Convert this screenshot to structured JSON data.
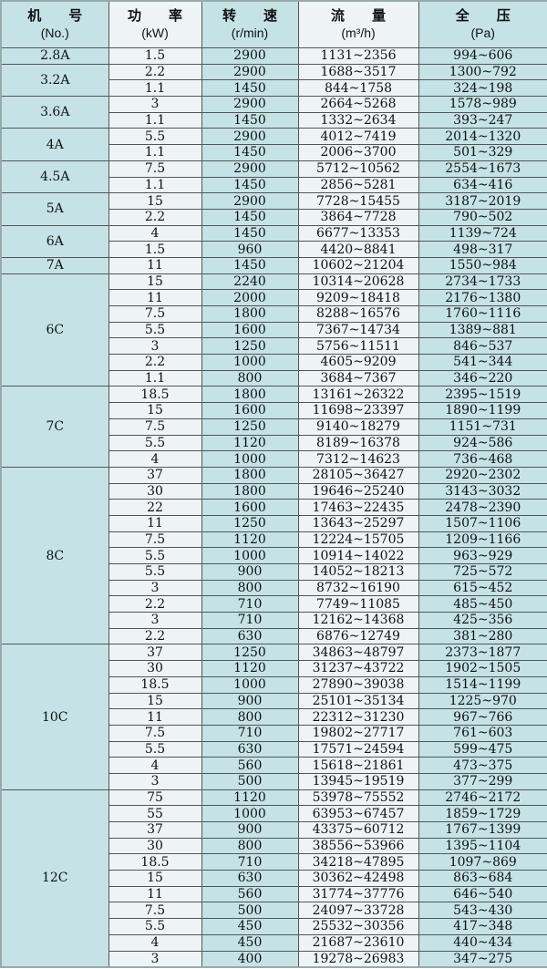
{
  "colors": {
    "teal": "#c5e3e6",
    "light": "#eef4f5",
    "border": "#555555"
  },
  "headers": [
    {
      "label": "机　　号",
      "unit": "(No.)"
    },
    {
      "label": "功　　率",
      "unit": "(kW)"
    },
    {
      "label": "转　　速",
      "unit": "(r/min)"
    },
    {
      "label": "流　　量",
      "unit": "(m³/h)"
    },
    {
      "label": "全　　压",
      "unit": "(Pa)"
    }
  ],
  "groups": [
    {
      "model": "2.8A",
      "rows": [
        [
          "1.5",
          "2900",
          "1131~2356",
          "994~606"
        ]
      ]
    },
    {
      "model": "3.2A",
      "rows": [
        [
          "2.2",
          "2900",
          "1688~3517",
          "1300~792"
        ],
        [
          "1.1",
          "1450",
          "844~1758",
          "324~198"
        ]
      ]
    },
    {
      "model": "3.6A",
      "rows": [
        [
          "3",
          "2900",
          "2664~5268",
          "1578~989"
        ],
        [
          "1.1",
          "1450",
          "1332~2634",
          "393~247"
        ]
      ]
    },
    {
      "model": "4A",
      "rows": [
        [
          "5.5",
          "2900",
          "4012~7419",
          "2014~1320"
        ],
        [
          "1.1",
          "1450",
          "2006~3700",
          "501~329"
        ]
      ]
    },
    {
      "model": "4.5A",
      "rows": [
        [
          "7.5",
          "2900",
          "5712~10562",
          "2554~1673"
        ],
        [
          "1.1",
          "1450",
          "2856~5281",
          "634~416"
        ]
      ]
    },
    {
      "model": "5A",
      "rows": [
        [
          "15",
          "2900",
          "7728~15455",
          "3187~2019"
        ],
        [
          "2.2",
          "1450",
          "3864~7728",
          "790~502"
        ]
      ]
    },
    {
      "model": "6A",
      "rows": [
        [
          "4",
          "1450",
          "6677~13353",
          "1139~724"
        ],
        [
          "1.5",
          "960",
          "4420~8841",
          "498~317"
        ]
      ]
    },
    {
      "model": "7A",
      "rows": [
        [
          "11",
          "1450",
          "10602~21204",
          "1550~984"
        ]
      ]
    },
    {
      "model": "6C",
      "rows": [
        [
          "15",
          "2240",
          "10314~20628",
          "2734~1733"
        ],
        [
          "11",
          "2000",
          "9209~18418",
          "2176~1380"
        ],
        [
          "7.5",
          "1800",
          "8288~16576",
          "1760~1116"
        ],
        [
          "5.5",
          "1600",
          "7367~14734",
          "1389~881"
        ],
        [
          "3",
          "1250",
          "5756~11511",
          "846~537"
        ],
        [
          "2.2",
          "1000",
          "4605~9209",
          "541~344"
        ],
        [
          "1.1",
          "800",
          "3684~7367",
          "346~220"
        ]
      ]
    },
    {
      "model": "7C",
      "rows": [
        [
          "18.5",
          "1800",
          "13161~26322",
          "2395~1519"
        ],
        [
          "15",
          "1600",
          "11698~23397",
          "1890~1199"
        ],
        [
          "7.5",
          "1250",
          "9140~18279",
          "1151~731"
        ],
        [
          "5.5",
          "1120",
          "8189~16378",
          "924~586"
        ],
        [
          "4",
          "1000",
          "7312~14623",
          "736~468"
        ]
      ]
    },
    {
      "model": "8C",
      "rows": [
        [
          "37",
          "1800",
          "28105~36427",
          "2920~2302"
        ],
        [
          "30",
          "1800",
          "19646~25240",
          "3143~3032"
        ],
        [
          "22",
          "1600",
          "17463~22435",
          "2478~2390"
        ],
        [
          "11",
          "1250",
          "13643~25297",
          "1507~1106"
        ],
        [
          "7.5",
          "1120",
          "12224~15705",
          "1209~1166"
        ],
        [
          "5.5",
          "1000",
          "10914~14022",
          "963~929"
        ],
        [
          "5.5",
          "900",
          "14052~18213",
          "725~572"
        ],
        [
          "3",
          "800",
          "8732~16190",
          "615~452"
        ],
        [
          "2.2",
          "710",
          "7749~11085",
          "485~450"
        ],
        [
          "3",
          "710",
          "12162~14368",
          "425~356"
        ],
        [
          "2.2",
          "630",
          "6876~12749",
          "381~280"
        ]
      ]
    },
    {
      "model": "10C",
      "rows": [
        [
          "37",
          "1250",
          "34863~48797",
          "2373~1877"
        ],
        [
          "30",
          "1120",
          "31237~43722",
          "1902~1505"
        ],
        [
          "18.5",
          "1000",
          "27890~39038",
          "1514~1199"
        ],
        [
          "15",
          "900",
          "25101~35134",
          "1225~970"
        ],
        [
          "11",
          "800",
          "22312~31230",
          "967~766"
        ],
        [
          "7.5",
          "710",
          "19802~27717",
          "761~603"
        ],
        [
          "5.5",
          "630",
          "17571~24594",
          "599~475"
        ],
        [
          "4",
          "560",
          "15618~21861",
          "473~375"
        ],
        [
          "3",
          "500",
          "13945~19519",
          "377~299"
        ]
      ]
    },
    {
      "model": "12C",
      "rows": [
        [
          "75",
          "1120",
          "53978~75552",
          "2746~2172"
        ],
        [
          "55",
          "1000",
          "63953~67457",
          "1859~1729"
        ],
        [
          "37",
          "900",
          "43375~60712",
          "1767~1399"
        ],
        [
          "30",
          "800",
          "38556~53966",
          "1395~1104"
        ],
        [
          "18.5",
          "710",
          "34218~47895",
          "1097~869"
        ],
        [
          "15",
          "630",
          "30362~42498",
          "863~684"
        ],
        [
          "11",
          "560",
          "31774~37776",
          "646~540"
        ],
        [
          "7.5",
          "500",
          "24097~33728",
          "543~430"
        ],
        [
          "5.5",
          "450",
          "25532~30356",
          "417~348"
        ],
        [
          "4",
          "450",
          "21687~23610",
          "440~434"
        ],
        [
          "3",
          "400",
          "19278~26983",
          "347~275"
        ]
      ]
    }
  ]
}
